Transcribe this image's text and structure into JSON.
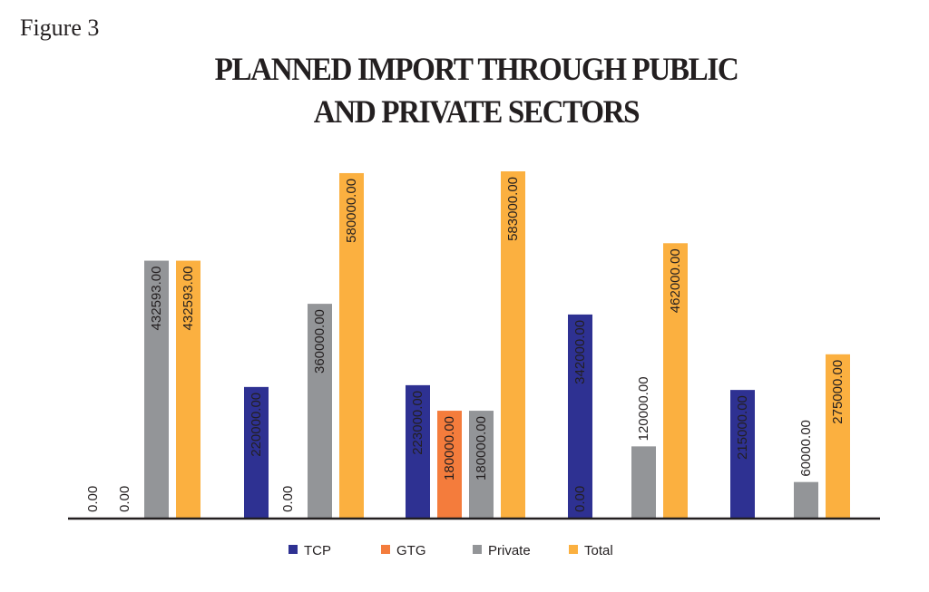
{
  "figure_label": "Figure 3",
  "chart_data": {
    "type": "bar",
    "title": [
      "PLANNED IMPORT THROUGH PUBLIC",
      "AND PRIVATE SECTORS"
    ],
    "categories": [
      "",
      "",
      "",
      "",
      ""
    ],
    "series": [
      {
        "name": "TCP",
        "color": "#2e3192",
        "values": [
          0,
          220000,
          223000,
          342000,
          215000
        ],
        "labels": [
          "0.00",
          "220000.00",
          "223000.00",
          "342000.00",
          "215000.00"
        ]
      },
      {
        "name": "GTG",
        "color": "#f47c3c",
        "values": [
          null,
          null,
          180000,
          null,
          null
        ],
        "labels": [
          "",
          "",
          "180000.00",
          "",
          ""
        ]
      },
      {
        "name": "Private",
        "color": "#939598",
        "values": [
          432593,
          360000,
          180000,
          120000,
          60000
        ],
        "labels": [
          "432593.00",
          "360000.00",
          "180000.00",
          "120000.00",
          "60000.00"
        ]
      },
      {
        "name": "Total",
        "color": "#fbb040",
        "values": [
          432593,
          580000,
          583000,
          462000,
          275000
        ],
        "labels": [
          "432593.00",
          "580000.00",
          "583000.00",
          "462000.00",
          "275000.00"
        ]
      }
    ],
    "extra_zero_labels": [
      {
        "group": 0,
        "slot": 1,
        "label": "0.00"
      },
      {
        "group": 1,
        "slot": 1,
        "label": "0.00"
      },
      {
        "group": 3,
        "slot": 0,
        "label": "0.00"
      }
    ],
    "ylim": [
      0,
      583000
    ],
    "grid": false,
    "legend_position": "bottom"
  }
}
